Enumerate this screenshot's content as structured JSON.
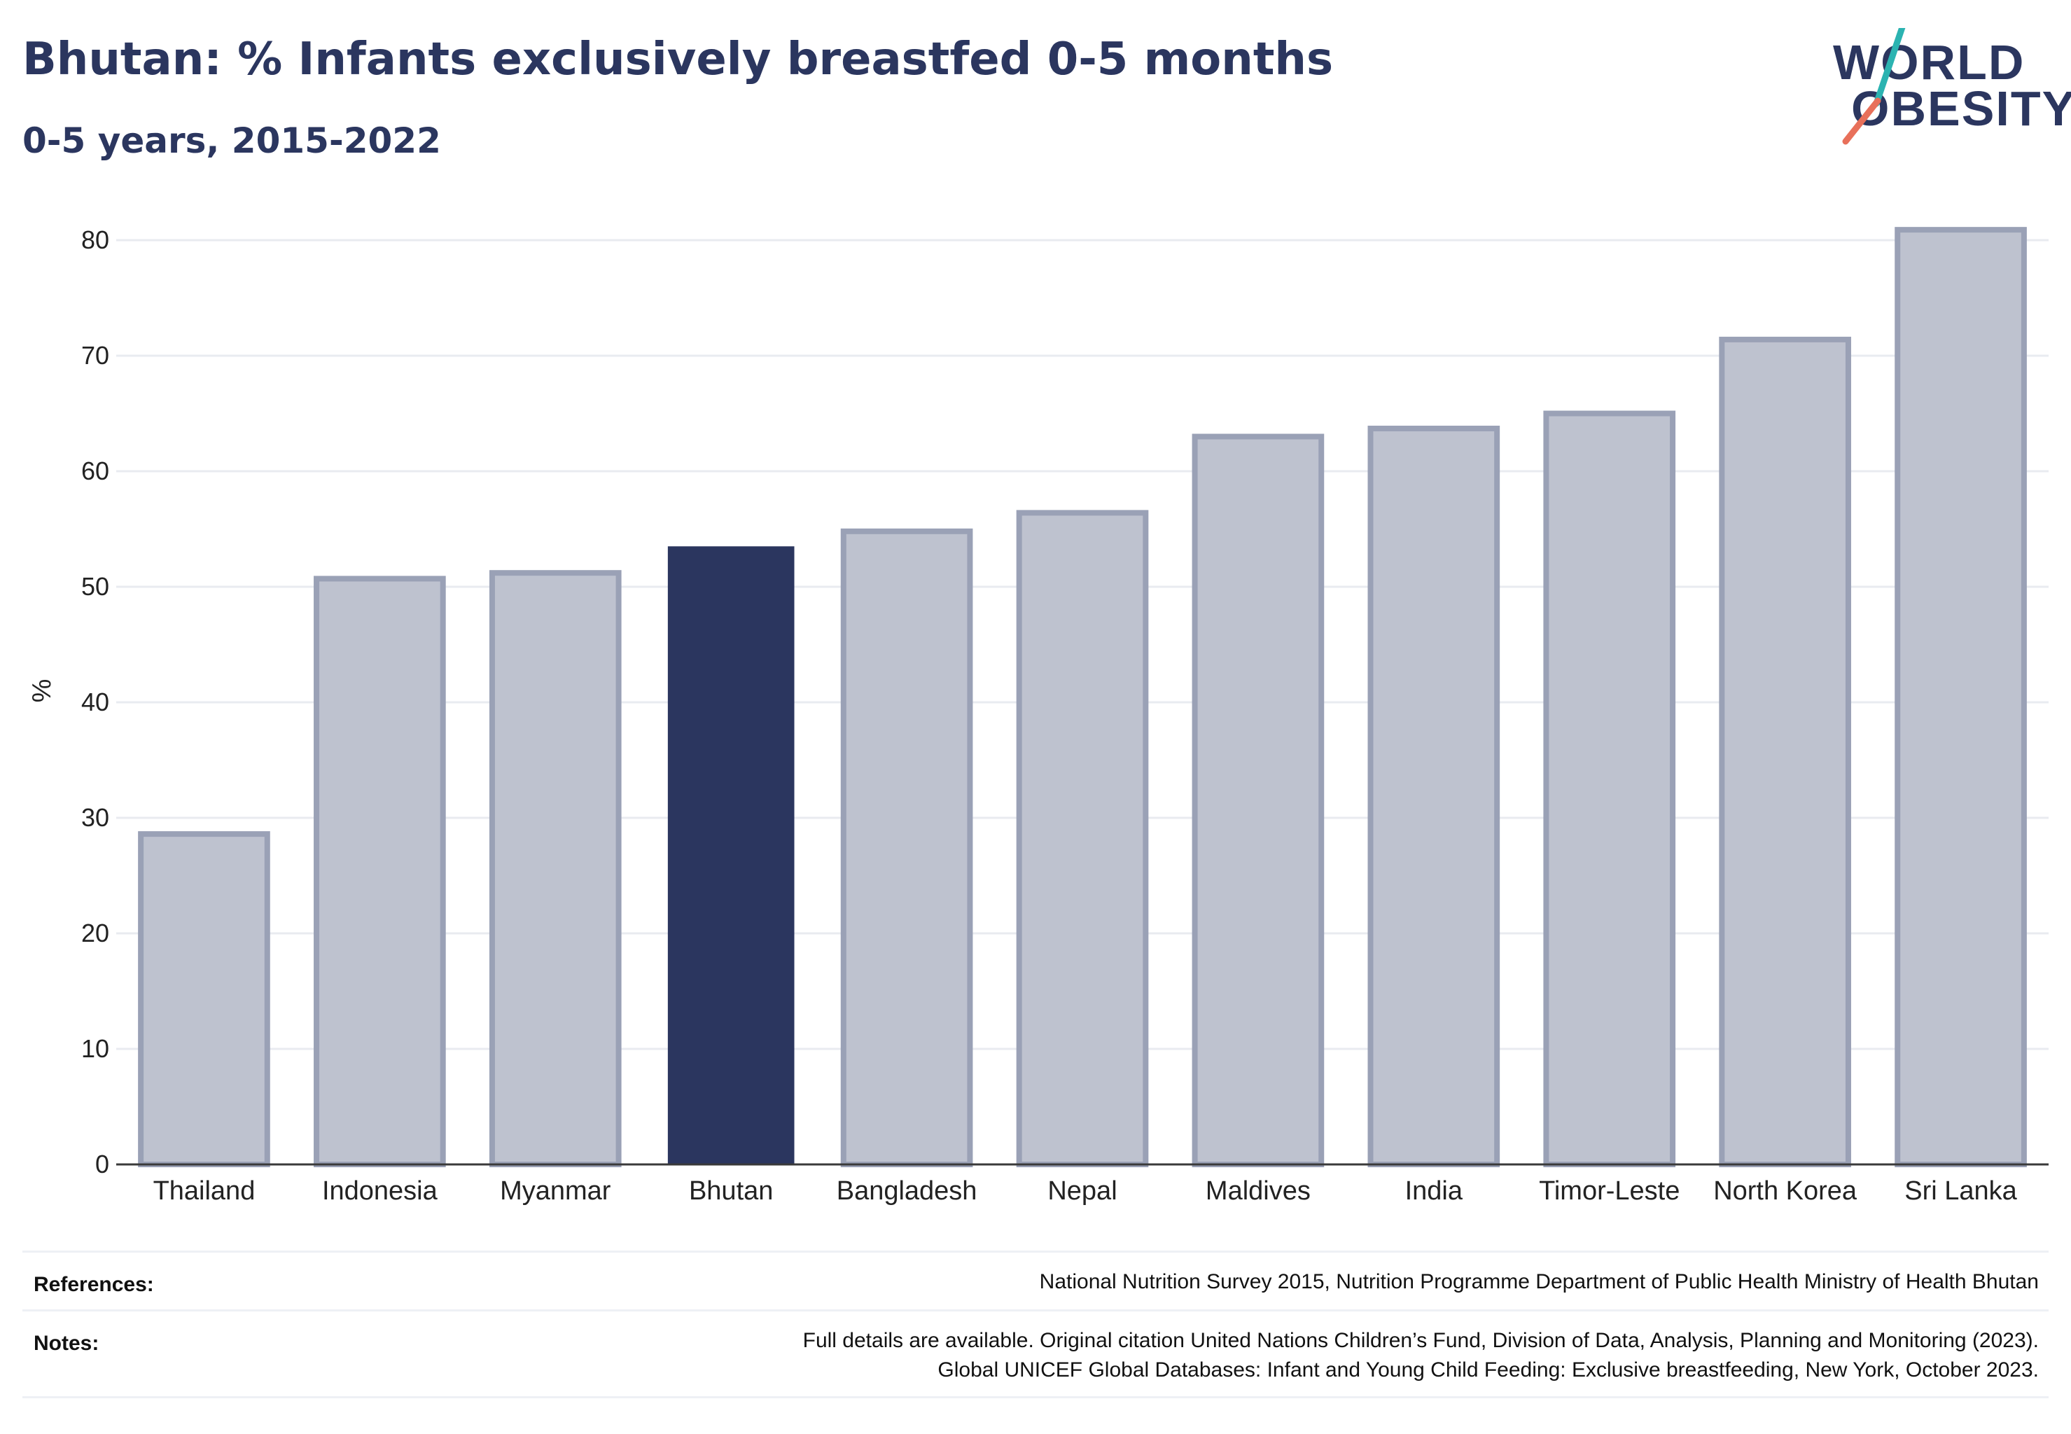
{
  "header": {
    "title": "Bhutan: % Infants exclusively breastfed 0-5 months",
    "subtitle": "0-5 years, 2015-2022"
  },
  "logo": {
    "line1": "WORLD",
    "line2": "OBESITY",
    "colors": {
      "text": "#2b365f",
      "slash_top": "#2bb3b1",
      "slash_bottom": "#e8705a"
    }
  },
  "chart_data": {
    "type": "bar",
    "title": "Bhutan: % Infants exclusively breastfed 0-5 months",
    "subtitle": "0-5 years, 2015-2022",
    "xlabel": "",
    "ylabel": "%",
    "ylim": [
      0,
      82
    ],
    "yticks": [
      0,
      10,
      20,
      30,
      40,
      50,
      60,
      70,
      80
    ],
    "grid": true,
    "categories": [
      "Thailand",
      "Indonesia",
      "Myanmar",
      "Bhutan",
      "Bangladesh",
      "Nepal",
      "Maldives",
      "India",
      "Timor-Leste",
      "North Korea",
      "Sri Lanka"
    ],
    "values": [
      28.6,
      50.7,
      51.2,
      53.5,
      54.8,
      56.4,
      63.0,
      63.7,
      65.0,
      71.4,
      80.9
    ],
    "highlight": "Bhutan",
    "colors": {
      "highlight": "#2b365f",
      "bar_fill": "#bec2cf",
      "bar_stroke": "#9aa1b6",
      "grid": "#e9ebf0",
      "axis": "#3a3a3a"
    }
  },
  "footer": {
    "references_label": "References:",
    "references_text": "National Nutrition Survey 2015, Nutrition Programme Department of Public Health Ministry of Health Bhutan",
    "notes_label": "Notes:",
    "notes_line1": "Full details are available. Original citation United Nations Children’s Fund, Division of Data, Analysis, Planning and Monitoring (2023).",
    "notes_line2": "Global UNICEF Global Databases: Infant and Young Child Feeding: Exclusive breastfeeding, New York, October 2023."
  }
}
